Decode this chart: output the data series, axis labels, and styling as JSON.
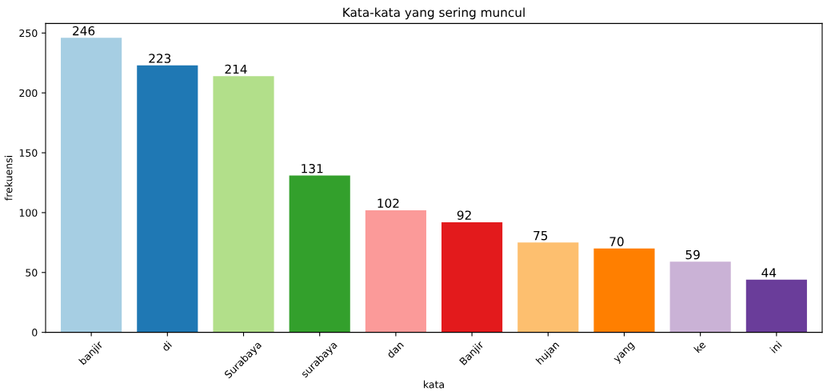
{
  "chart_data": {
    "type": "bar",
    "title": "Kata-kata yang sering muncul",
    "xlabel": "kata",
    "ylabel": "frekuensi",
    "categories": [
      "banjir",
      "di",
      "Surabaya",
      "surabaya",
      "dan",
      "Banjir",
      "hujan",
      "yang",
      "ke",
      "ini"
    ],
    "values": [
      246,
      223,
      214,
      131,
      102,
      92,
      75,
      70,
      59,
      44
    ],
    "colors": [
      "#a6cee3",
      "#1f78b4",
      "#b2df8a",
      "#33a02c",
      "#fb9a99",
      "#e31a1c",
      "#fdbf6f",
      "#ff7f00",
      "#cab2d6",
      "#6a3d9a"
    ],
    "ylim": [
      0,
      258
    ],
    "yticks": [
      0,
      50,
      100,
      150,
      200,
      250
    ],
    "data_labels": true,
    "grid": false,
    "legend": false
  }
}
